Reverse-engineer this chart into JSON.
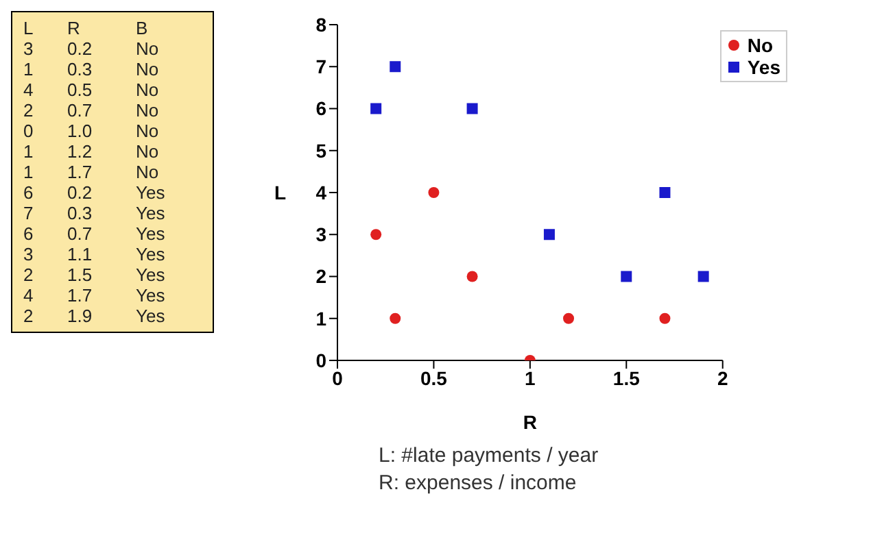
{
  "chart_data": [
    {
      "type": "other",
      "annotations": [
        "L R B",
        "3 0.2 No",
        "1 0.3 No",
        "4 0.5 No",
        "2 0.7 No",
        "0 1.0 No",
        "1 1.2 No",
        "1 1.7 No",
        "6 0.2 Yes",
        "7 0.3 Yes",
        "6 0.7 Yes",
        "3 1.1 Yes",
        "2 1.5 Yes",
        "4 1.7 Yes",
        "2 1.9 Yes"
      ],
      "color": "#fbe8a6"
    },
    {
      "type": "scatter",
      "xlabel": "R",
      "ylabel": "L",
      "xlim": [
        0,
        2
      ],
      "xticks": [
        0,
        0.5,
        1,
        1.5,
        2
      ],
      "ylim": [
        0,
        8
      ],
      "yticks": [
        0,
        1,
        2,
        3,
        4,
        5,
        6,
        7,
        8
      ],
      "grid": false,
      "legend": "top right",
      "series": [
        {
          "name": "No",
          "color": "#e02020",
          "marker": "circle",
          "x": [
            0.2,
            0.3,
            0.5,
            0.7,
            1.0,
            1.2,
            1.7
          ],
          "values": [
            3,
            1,
            4,
            2,
            0,
            1,
            1
          ]
        },
        {
          "name": "Yes",
          "color": "#1a1acc",
          "marker": "square",
          "x": [
            0.2,
            0.3,
            0.7,
            1.1,
            1.5,
            1.7,
            1.9
          ],
          "values": [
            6,
            7,
            6,
            3,
            2,
            4,
            2
          ]
        }
      ],
      "annotations": [
        "L: #late payments / year",
        "R: expenses / income"
      ]
    }
  ]
}
